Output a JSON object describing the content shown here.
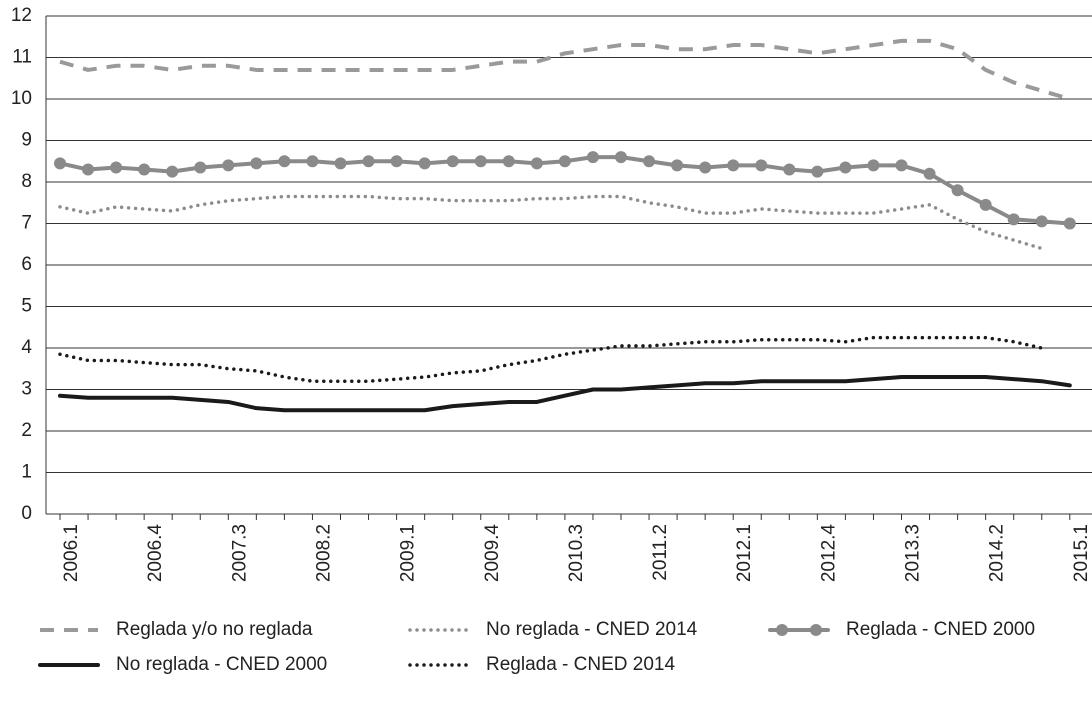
{
  "chart_data": {
    "type": "line",
    "categories": [
      "2006.1",
      null,
      null,
      "2006.4",
      null,
      null,
      "2007.3",
      null,
      null,
      "2008.2",
      null,
      null,
      "2009.1",
      null,
      null,
      "2009.4",
      null,
      null,
      "2010.3",
      null,
      null,
      "2011.2",
      null,
      null,
      "2012.1",
      null,
      null,
      "2012.4",
      null,
      null,
      "2013.3",
      null,
      null,
      "2014.2",
      null,
      null,
      "2015.1"
    ],
    "ylim": [
      0,
      12
    ],
    "yticks": [
      0,
      1,
      2,
      3,
      4,
      5,
      6,
      7,
      8,
      9,
      10,
      11,
      12
    ],
    "grid": true,
    "series": [
      {
        "name": "Reglada y/o no reglada",
        "color": "#9a9a9a",
        "style": "dashed",
        "marker": false,
        "values": [
          10.9,
          10.7,
          10.8,
          10.8,
          10.7,
          10.8,
          10.8,
          10.7,
          10.7,
          10.7,
          10.7,
          10.7,
          10.7,
          10.7,
          10.7,
          10.8,
          10.9,
          10.9,
          11.1,
          11.2,
          11.3,
          11.3,
          11.2,
          11.2,
          11.3,
          11.3,
          11.2,
          11.1,
          11.2,
          11.3,
          11.4,
          11.4,
          11.2,
          10.7,
          10.4,
          10.2,
          10.0
        ]
      },
      {
        "name": "No reglada - CNED 2014",
        "color": "#8c8c8c",
        "style": "dotted",
        "marker": false,
        "values": [
          7.4,
          7.25,
          7.4,
          7.35,
          7.3,
          7.45,
          7.55,
          7.6,
          7.65,
          7.65,
          7.65,
          7.65,
          7.6,
          7.6,
          7.55,
          7.55,
          7.55,
          7.6,
          7.6,
          7.65,
          7.65,
          7.5,
          7.4,
          7.25,
          7.25,
          7.35,
          7.3,
          7.25,
          7.25,
          7.25,
          7.35,
          7.45,
          7.1,
          6.8,
          6.6,
          6.4,
          null
        ]
      },
      {
        "name": "Reglada - CNED 2000",
        "color": "#8a8a8a",
        "style": "solid",
        "marker": true,
        "values": [
          8.45,
          8.3,
          8.35,
          8.3,
          8.25,
          8.35,
          8.4,
          8.45,
          8.5,
          8.5,
          8.45,
          8.5,
          8.5,
          8.45,
          8.5,
          8.5,
          8.5,
          8.45,
          8.5,
          8.6,
          8.6,
          8.5,
          8.4,
          8.35,
          8.4,
          8.4,
          8.3,
          8.25,
          8.35,
          8.4,
          8.4,
          8.2,
          7.8,
          7.45,
          7.1,
          7.05,
          7.0
        ]
      },
      {
        "name": "No reglada - CNED 2000",
        "color": "#1a1a1a",
        "style": "solid",
        "marker": false,
        "values": [
          2.85,
          2.8,
          2.8,
          2.8,
          2.8,
          2.75,
          2.7,
          2.55,
          2.5,
          2.5,
          2.5,
          2.5,
          2.5,
          2.5,
          2.6,
          2.65,
          2.7,
          2.7,
          2.85,
          3.0,
          3.0,
          3.05,
          3.1,
          3.15,
          3.15,
          3.2,
          3.2,
          3.2,
          3.2,
          3.25,
          3.3,
          3.3,
          3.3,
          3.3,
          3.25,
          3.2,
          3.1
        ]
      },
      {
        "name": "Reglada - CNED 2014",
        "color": "#1a1a1a",
        "style": "dotted",
        "marker": false,
        "values": [
          3.85,
          3.7,
          3.7,
          3.65,
          3.6,
          3.6,
          3.5,
          3.45,
          3.3,
          3.2,
          3.2,
          3.2,
          3.25,
          3.3,
          3.4,
          3.45,
          3.6,
          3.7,
          3.85,
          3.95,
          4.05,
          4.05,
          4.1,
          4.15,
          4.15,
          4.2,
          4.2,
          4.2,
          4.15,
          4.25,
          4.25,
          4.25,
          4.25,
          4.25,
          4.15,
          4.0,
          null
        ]
      }
    ]
  }
}
